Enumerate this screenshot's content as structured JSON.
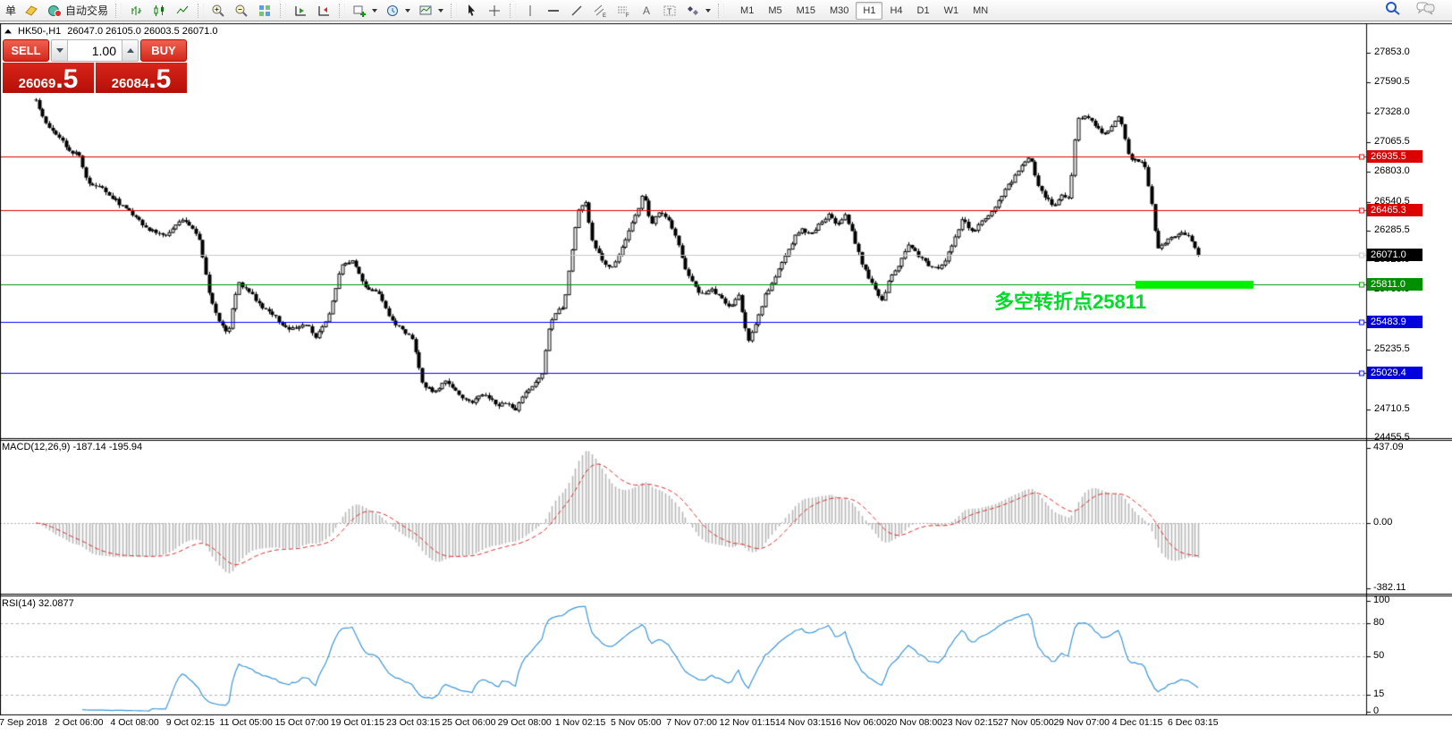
{
  "toolbar": {
    "order_label": "单",
    "autotrade_label": "自动交易",
    "timeframes": [
      "M1",
      "M5",
      "M15",
      "M30",
      "H1",
      "H4",
      "D1",
      "W1",
      "MN"
    ],
    "active_timeframe": "H1",
    "icon_names": [
      "yellow-tag-icon",
      "autotrade-icon",
      "bar-chart-icon",
      "candlestick-icon",
      "line-chart-icon",
      "zoom-in-icon",
      "zoom-out-icon",
      "tile-windows-icon",
      "auto-scroll-icon",
      "chart-shift-icon",
      "new-chart-icon",
      "period-clock-icon",
      "template-icon",
      "cursor-icon",
      "crosshair-icon",
      "vertical-line-icon",
      "horizontal-line-icon",
      "trendline-icon",
      "channel-icon",
      "fibonacci-icon",
      "text-icon",
      "text-label-icon",
      "arrows-icon",
      "search-icon",
      "chat-icon"
    ]
  },
  "chart_header": {
    "symbol_period": "HK50-,H1",
    "ohlc_text": "26047.0 26105.0 26003.5 26071.0"
  },
  "trade_panel": {
    "sell_label": "SELL",
    "buy_label": "BUY",
    "volume": "1.00",
    "sell_price_int": "26069",
    "sell_price_dec": ".5",
    "buy_price_int": "26084",
    "buy_price_dec": ".5"
  },
  "annotation": {
    "text": "多空转折点25811",
    "color": "#00DC28"
  },
  "indicators": {
    "macd_label": "MACD(12,26,9) -187.14 -195.94",
    "rsi_label": "RSI(14) 32.0877"
  },
  "chart_data": {
    "type": "candlestick",
    "symbol": "HK50-",
    "timeframe": "H1",
    "last_ohlc": {
      "open": 26047.0,
      "high": 26105.0,
      "low": 26003.5,
      "close": 26071.0
    },
    "bid": 26069.5,
    "ask": 26084.5,
    "price_axis": {
      "max": 27853.0,
      "min": 24455.5,
      "ticks": [
        27853.0,
        27590.5,
        27328.0,
        27065.5,
        26803.0,
        26540.5,
        26285.5,
        26023.0,
        25760.5,
        25235.5,
        24710.5,
        24455.5
      ]
    },
    "levels": [
      {
        "price": 26935.5,
        "label": "26935.5",
        "color": "#DD0000",
        "bg": "#DD0000"
      },
      {
        "price": 26465.3,
        "label": "26465.3",
        "color": "#DD0000",
        "bg": "#DD0000"
      },
      {
        "price": 26071.0,
        "label": "26071.0",
        "color": "#C8C8C8",
        "bg": "#000000",
        "current": true
      },
      {
        "price": 25811.0,
        "label": "25811.0",
        "color": "#008F00",
        "bg": "#008F00",
        "highlight": [
          1270,
          1402
        ],
        "highlight_color": "#00F000"
      },
      {
        "price": 25483.9,
        "label": "25483.9",
        "color": "#0000FF",
        "bg": "#0000DD"
      },
      {
        "price": 25029.4,
        "label": "25029.4",
        "color": "#0000FF",
        "bg": "#0000DD"
      }
    ],
    "macd": {
      "params": "12,26,9",
      "value": -187.14,
      "signal": -195.94,
      "scale": [
        "437.09",
        "0.00",
        "-382.11"
      ],
      "scale_values": [
        437.09,
        0.0,
        -382.11
      ]
    },
    "rsi": {
      "period": 14,
      "value": 32.0877,
      "levels": [
        80,
        50,
        15
      ],
      "scale": [
        "100",
        "80",
        "50",
        "15",
        "0"
      ],
      "scale_values": [
        100,
        80,
        50,
        15,
        0
      ]
    },
    "x_axis_dates": [
      "7 Sep 2018",
      "2 Oct 06:00",
      "4 Oct 08:00",
      "9 Oct 02:15",
      "11 Oct 05:00",
      "15 Oct 07:00",
      "19 Oct 01:15",
      "23 Oct 03:15",
      "25 Oct 06:00",
      "29 Oct 08:00",
      "1 Nov 02:15",
      "5 Nov 05:00",
      "7 Nov 07:00",
      "12 Nov 01:15",
      "14 Nov 03:15",
      "16 Nov 06:00",
      "20 Nov 08:00",
      "23 Nov 02:15",
      "27 Nov 05:00",
      "29 Nov 07:00",
      "4 Dec 01:15",
      "6 Dec 03:15"
    ],
    "series_waypoints": [
      [
        40,
        27435
      ],
      [
        52,
        27215
      ],
      [
        64,
        27130
      ],
      [
        76,
        27000
      ],
      [
        88,
        26945
      ],
      [
        98,
        26700
      ],
      [
        114,
        26650
      ],
      [
        130,
        26545
      ],
      [
        148,
        26430
      ],
      [
        164,
        26310
      ],
      [
        184,
        26230
      ],
      [
        204,
        26390
      ],
      [
        222,
        26240
      ],
      [
        232,
        25800
      ],
      [
        242,
        25520
      ],
      [
        254,
        25360
      ],
      [
        266,
        25820
      ],
      [
        280,
        25740
      ],
      [
        294,
        25600
      ],
      [
        308,
        25520
      ],
      [
        324,
        25400
      ],
      [
        340,
        25480
      ],
      [
        354,
        25340
      ],
      [
        368,
        25560
      ],
      [
        382,
        25980
      ],
      [
        394,
        26020
      ],
      [
        408,
        25790
      ],
      [
        424,
        25715
      ],
      [
        438,
        25480
      ],
      [
        452,
        25400
      ],
      [
        462,
        25320
      ],
      [
        472,
        24930
      ],
      [
        486,
        24850
      ],
      [
        500,
        24970
      ],
      [
        514,
        24810
      ],
      [
        528,
        24770
      ],
      [
        542,
        24850
      ],
      [
        556,
        24730
      ],
      [
        566,
        24770
      ],
      [
        576,
        24690
      ],
      [
        586,
        24850
      ],
      [
        596,
        24930
      ],
      [
        606,
        25010
      ],
      [
        614,
        25440
      ],
      [
        622,
        25560
      ],
      [
        630,
        25610
      ],
      [
        638,
        26030
      ],
      [
        646,
        26440
      ],
      [
        654,
        26545
      ],
      [
        662,
        26190
      ],
      [
        672,
        26030
      ],
      [
        682,
        25950
      ],
      [
        692,
        26070
      ],
      [
        702,
        26270
      ],
      [
        712,
        26430
      ],
      [
        719,
        26620
      ],
      [
        728,
        26345
      ],
      [
        738,
        26465
      ],
      [
        746,
        26390
      ],
      [
        756,
        26230
      ],
      [
        766,
        25950
      ],
      [
        776,
        25795
      ],
      [
        786,
        25715
      ],
      [
        796,
        25755
      ],
      [
        806,
        25715
      ],
      [
        816,
        25600
      ],
      [
        826,
        25715
      ],
      [
        836,
        25300
      ],
      [
        846,
        25480
      ],
      [
        856,
        25715
      ],
      [
        866,
        25875
      ],
      [
        876,
        26030
      ],
      [
        886,
        26190
      ],
      [
        896,
        26310
      ],
      [
        906,
        26230
      ],
      [
        916,
        26345
      ],
      [
        926,
        26425
      ],
      [
        936,
        26345
      ],
      [
        946,
        26425
      ],
      [
        956,
        26190
      ],
      [
        966,
        25950
      ],
      [
        976,
        25795
      ],
      [
        986,
        25680
      ],
      [
        996,
        25875
      ],
      [
        1006,
        25995
      ],
      [
        1016,
        26150
      ],
      [
        1026,
        26070
      ],
      [
        1036,
        25995
      ],
      [
        1046,
        25950
      ],
      [
        1056,
        25995
      ],
      [
        1066,
        26190
      ],
      [
        1076,
        26390
      ],
      [
        1086,
        26270
      ],
      [
        1096,
        26345
      ],
      [
        1106,
        26425
      ],
      [
        1116,
        26545
      ],
      [
        1126,
        26665
      ],
      [
        1136,
        26780
      ],
      [
        1146,
        26900
      ],
      [
        1152,
        26930
      ],
      [
        1160,
        26700
      ],
      [
        1168,
        26585
      ],
      [
        1178,
        26505
      ],
      [
        1188,
        26620
      ],
      [
        1196,
        26545
      ],
      [
        1204,
        27250
      ],
      [
        1214,
        27295
      ],
      [
        1224,
        27215
      ],
      [
        1234,
        27135
      ],
      [
        1244,
        27215
      ],
      [
        1252,
        27310
      ],
      [
        1262,
        26940
      ],
      [
        1272,
        26900
      ],
      [
        1280,
        26860
      ],
      [
        1288,
        26500
      ],
      [
        1294,
        26110
      ],
      [
        1304,
        26190
      ],
      [
        1314,
        26230
      ],
      [
        1324,
        26270
      ],
      [
        1334,
        26190
      ],
      [
        1340,
        26071
      ]
    ]
  }
}
